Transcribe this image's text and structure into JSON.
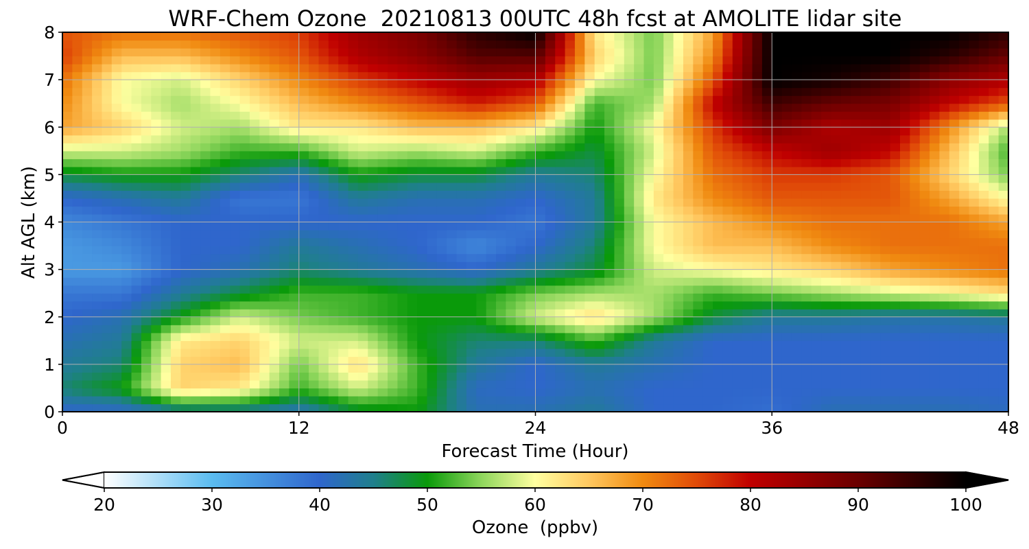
{
  "chart_data": {
    "type": "heatmap",
    "title": "WRF-Chem Ozone  20210813 00UTC 48h fcst at AMOLITE lidar site",
    "xlabel": "Forecast Time (Hour)",
    "ylabel": "Alt AGL (km)",
    "xlim": [
      0,
      48
    ],
    "ylim": [
      0,
      8
    ],
    "xticks": [
      "0",
      "12",
      "24",
      "36",
      "48"
    ],
    "yticks": [
      "0",
      "1",
      "2",
      "3",
      "4",
      "5",
      "6",
      "7",
      "8"
    ],
    "grid": true,
    "x": [
      0,
      3,
      6,
      9,
      12,
      15,
      18,
      21,
      24,
      27,
      30,
      33,
      36,
      39,
      42,
      45,
      48
    ],
    "y": [
      0,
      0.5,
      1,
      1.5,
      2,
      2.5,
      3,
      3.5,
      4,
      4.5,
      5,
      5.5,
      6,
      6.5,
      7,
      7.5,
      8
    ],
    "z": [
      [
        40,
        40,
        44,
        44,
        42,
        48,
        50,
        42,
        42,
        44,
        40,
        40,
        39,
        42,
        42,
        42,
        41
      ],
      [
        46,
        50,
        64,
        62,
        52,
        58,
        52,
        41,
        40,
        42,
        40,
        40,
        40,
        40,
        40,
        40,
        40
      ],
      [
        44,
        46,
        64,
        66,
        54,
        63,
        52,
        44,
        40,
        44,
        42,
        40,
        40,
        40,
        40,
        40,
        40
      ],
      [
        42,
        44,
        62,
        64,
        58,
        58,
        50,
        46,
        46,
        52,
        44,
        40,
        40,
        40,
        40,
        40,
        40
      ],
      [
        40,
        42,
        50,
        58,
        54,
        52,
        50,
        50,
        58,
        63,
        56,
        48,
        44,
        44,
        43,
        43,
        44
      ],
      [
        38,
        38,
        44,
        48,
        52,
        52,
        50,
        50,
        54,
        56,
        56,
        52,
        54,
        56,
        58,
        60,
        63
      ],
      [
        34,
        34,
        40,
        42,
        46,
        44,
        42,
        40,
        44,
        48,
        58,
        60,
        62,
        64,
        68,
        70,
        72
      ],
      [
        34,
        36,
        40,
        40,
        44,
        42,
        40,
        36,
        40,
        46,
        60,
        66,
        66,
        70,
        72,
        72,
        72
      ],
      [
        36,
        38,
        40,
        40,
        40,
        40,
        40,
        40,
        38,
        44,
        60,
        66,
        70,
        72,
        72,
        72,
        68
      ],
      [
        40,
        42,
        44,
        38,
        38,
        44,
        42,
        42,
        40,
        44,
        62,
        70,
        74,
        74,
        74,
        68,
        60
      ],
      [
        48,
        50,
        50,
        46,
        42,
        50,
        48,
        48,
        44,
        46,
        60,
        72,
        76,
        76,
        74,
        64,
        54
      ],
      [
        58,
        58,
        56,
        52,
        52,
        58,
        56,
        58,
        52,
        48,
        58,
        74,
        80,
        84,
        80,
        66,
        52
      ],
      [
        68,
        64,
        58,
        56,
        62,
        62,
        66,
        66,
        62,
        50,
        60,
        76,
        88,
        82,
        84,
        70,
        56
      ],
      [
        70,
        60,
        56,
        60,
        66,
        70,
        74,
        78,
        74,
        52,
        56,
        80,
        94,
        90,
        88,
        80,
        74
      ],
      [
        72,
        60,
        58,
        64,
        70,
        76,
        80,
        84,
        82,
        60,
        54,
        74,
        100,
        98,
        94,
        86,
        82
      ],
      [
        76,
        66,
        66,
        70,
        74,
        82,
        86,
        92,
        92,
        64,
        54,
        70,
        100,
        100,
        100,
        96,
        90
      ],
      [
        74,
        72,
        72,
        74,
        76,
        84,
        88,
        96,
        100,
        62,
        54,
        68,
        100,
        100,
        100,
        100,
        96
      ]
    ],
    "colorbar": {
      "label": "Ozone  (ppbv)",
      "min": 20,
      "max": 100,
      "extend": "both",
      "ticks": [
        "20",
        "30",
        "40",
        "50",
        "60",
        "70",
        "80",
        "90",
        "100"
      ],
      "stops": [
        {
          "v": 20,
          "c": "#ffffff"
        },
        {
          "v": 30,
          "c": "#5bbcf0"
        },
        {
          "v": 40,
          "c": "#2f66cc"
        },
        {
          "v": 45,
          "c": "#1f7f8c"
        },
        {
          "v": 50,
          "c": "#0a9a0a"
        },
        {
          "v": 55,
          "c": "#8ed65c"
        },
        {
          "v": 60,
          "c": "#ffffa0"
        },
        {
          "v": 65,
          "c": "#ffc860"
        },
        {
          "v": 70,
          "c": "#f08a10"
        },
        {
          "v": 75,
          "c": "#e04a08"
        },
        {
          "v": 80,
          "c": "#c00000"
        },
        {
          "v": 90,
          "c": "#6a0000"
        },
        {
          "v": 100,
          "c": "#000000"
        }
      ]
    }
  }
}
